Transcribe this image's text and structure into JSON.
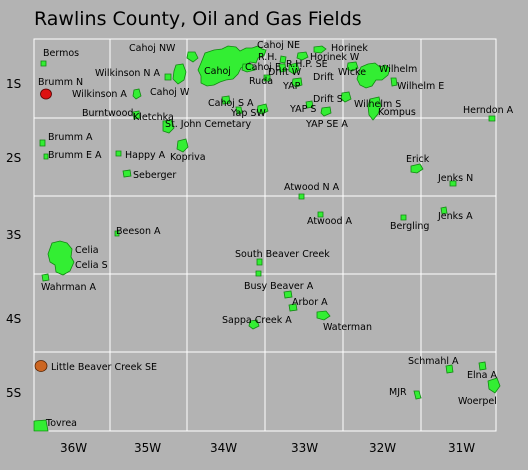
{
  "title": "Rawlins County, Oil and Gas Fields",
  "range_labels": [
    "36W",
    "35W",
    "34W",
    "33W",
    "32W",
    "31W"
  ],
  "township_labels": [
    "1S",
    "2S",
    "3S",
    "4S",
    "5S"
  ],
  "fields": {
    "bermos": "Bermos",
    "cahoj_nw": "Cahoj NW",
    "cahoj_ne": "Cahoj NE",
    "horinek": "Horinek",
    "horinek_w": "Horinek W",
    "r_h": "R.H.",
    "r_h_p_se": "R.H.P. SE",
    "cahoj": "Cahoj",
    "cahoj_e": "Cahoj E",
    "wicke": "Wicke",
    "wilhelm": "Wilhelm",
    "brumm_n": "Brumm N",
    "wilkinson_n_a": "Wilkinson N A",
    "drift_w": "Drift W",
    "drift": "Drift",
    "ruda": "Ruda",
    "yap": "YAP",
    "wilhelm_e": "Wilhelm E",
    "wilkinson_a": "Wilkinson A",
    "cahoj_w": "Cahoj W",
    "drift_s": "Drift S",
    "wilhelm_s": "Wilhelm S",
    "cahoj_s_a": "Cahoj S A",
    "herndon_a": "Herndon A",
    "burntwood": "Burntwood",
    "yap_sw": "Yap SW",
    "yap_s": "YAP S",
    "kompus": "Kompus",
    "kletchka": "Kletchka",
    "st_john_cemetary": "St. John Cemetary",
    "yap_se_a": "YAP SE A",
    "brumm_a": "Brumm A",
    "brumm_e_a": "Brumm E A",
    "happy_a": "Happy A",
    "kopriva": "Kopriva",
    "erick": "Erick",
    "seberger": "Seberger",
    "jenks_n": "Jenks N",
    "atwood_n_a": "Atwood N A",
    "jenks_a": "Jenks A",
    "atwood_a": "Atwood A",
    "bergling": "Bergling",
    "beeson_a": "Beeson A",
    "celia": "Celia",
    "south_beaver_creek": "South Beaver Creek",
    "celia_s": "Celia S",
    "wahrman_a": "Wahrman A",
    "busy_beaver_a": "Busy Beaver A",
    "arbor_a": "Arbor A",
    "sappa_creek_a": "Sappa Creek A",
    "waterman": "Waterman",
    "little_beaver_creek_se": "Little Beaver Creek SE",
    "schmahl_a": "Schmahl A",
    "elna_a": "Elna A",
    "mjr": "MJR",
    "woerpel": "Woerpel",
    "tovrea": "Tovrea"
  },
  "colors": {
    "background": "#b3b3b3",
    "field": "#33ee33",
    "highlight_field": "#dd1111",
    "orange_field": "#cc6622",
    "grid": "#ffffff"
  }
}
